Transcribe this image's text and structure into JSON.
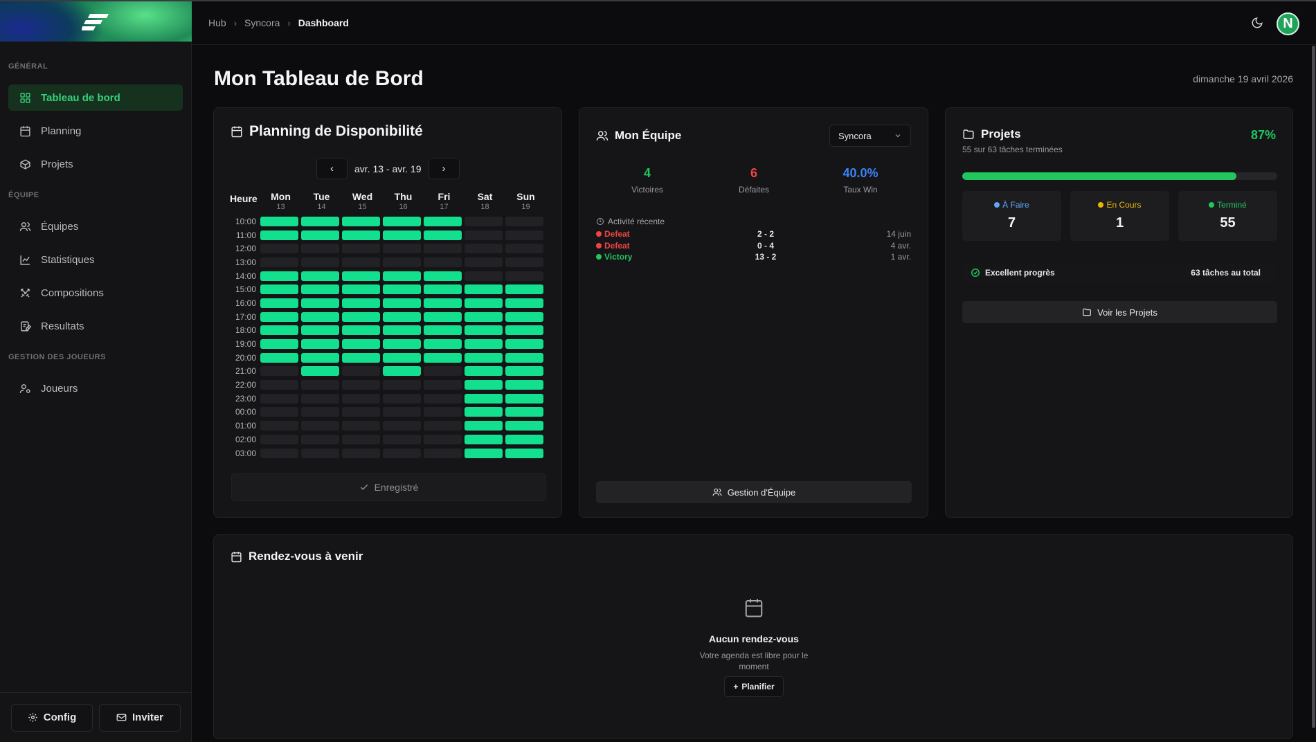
{
  "colors": {
    "accent": "#34d27a",
    "slot_on": "#12e08e",
    "victory": "#22c55e",
    "defeat": "#ef4444",
    "winrate": "#3b82f6",
    "todo": "#60a5fa",
    "in_progress": "#eab308",
    "done": "#22c55e"
  },
  "sidebar": {
    "sections": [
      {
        "title": "GÉNÉRAL",
        "items": [
          {
            "label": "Tableau de bord",
            "icon": "dashboard-icon",
            "active": true
          },
          {
            "label": "Planning",
            "icon": "calendar-icon"
          },
          {
            "label": "Projets",
            "icon": "box-icon"
          }
        ]
      },
      {
        "title": "ÉQUIPE",
        "items": [
          {
            "label": "Équipes",
            "icon": "users-icon"
          },
          {
            "label": "Statistiques",
            "icon": "chart-line-icon"
          },
          {
            "label": "Compositions",
            "icon": "swords-icon"
          },
          {
            "label": "Resultats",
            "icon": "edit-list-icon"
          }
        ]
      },
      {
        "title": "GESTION DES JOUEURS",
        "items": [
          {
            "label": "Joueurs",
            "icon": "user-cog-icon"
          }
        ]
      }
    ],
    "footer": {
      "config_label": "Config",
      "invite_label": "Inviter"
    }
  },
  "header": {
    "breadcrumbs": [
      "Hub",
      "Syncora",
      "Dashboard"
    ],
    "avatar_letter": "N"
  },
  "page": {
    "title": "Mon Tableau de Bord",
    "date": "dimanche 19 avril 2026"
  },
  "planning": {
    "title": "Planning de Disponibilité",
    "week": "avr. 13 - avr. 19",
    "hour_label": "Heure",
    "days": [
      {
        "name": "Mon",
        "num": "13"
      },
      {
        "name": "Tue",
        "num": "14"
      },
      {
        "name": "Wed",
        "num": "15"
      },
      {
        "name": "Thu",
        "num": "16"
      },
      {
        "name": "Fri",
        "num": "17"
      },
      {
        "name": "Sat",
        "num": "18"
      },
      {
        "name": "Sun",
        "num": "19"
      }
    ],
    "rows": [
      {
        "hour": "10:00",
        "slots": [
          1,
          1,
          1,
          1,
          1,
          0,
          0
        ]
      },
      {
        "hour": "11:00",
        "slots": [
          1,
          1,
          1,
          1,
          1,
          0,
          0
        ]
      },
      {
        "hour": "12:00",
        "slots": [
          0,
          0,
          0,
          0,
          0,
          0,
          0
        ]
      },
      {
        "hour": "13:00",
        "slots": [
          0,
          0,
          0,
          0,
          0,
          0,
          0
        ]
      },
      {
        "hour": "14:00",
        "slots": [
          1,
          1,
          1,
          1,
          1,
          0,
          0
        ]
      },
      {
        "hour": "15:00",
        "slots": [
          1,
          1,
          1,
          1,
          1,
          1,
          1
        ]
      },
      {
        "hour": "16:00",
        "slots": [
          1,
          1,
          1,
          1,
          1,
          1,
          1
        ]
      },
      {
        "hour": "17:00",
        "slots": [
          1,
          1,
          1,
          1,
          1,
          1,
          1
        ]
      },
      {
        "hour": "18:00",
        "slots": [
          1,
          1,
          1,
          1,
          1,
          1,
          1
        ]
      },
      {
        "hour": "19:00",
        "slots": [
          1,
          1,
          1,
          1,
          1,
          1,
          1
        ]
      },
      {
        "hour": "20:00",
        "slots": [
          1,
          1,
          1,
          1,
          1,
          1,
          1
        ]
      },
      {
        "hour": "21:00",
        "slots": [
          0,
          1,
          0,
          1,
          0,
          1,
          1
        ]
      },
      {
        "hour": "22:00",
        "slots": [
          0,
          0,
          0,
          0,
          0,
          1,
          1
        ]
      },
      {
        "hour": "23:00",
        "slots": [
          0,
          0,
          0,
          0,
          0,
          1,
          1
        ]
      },
      {
        "hour": "00:00",
        "slots": [
          0,
          0,
          0,
          0,
          0,
          1,
          1
        ]
      },
      {
        "hour": "01:00",
        "slots": [
          0,
          0,
          0,
          0,
          0,
          1,
          1
        ]
      },
      {
        "hour": "02:00",
        "slots": [
          0,
          0,
          0,
          0,
          0,
          1,
          1
        ]
      },
      {
        "hour": "03:00",
        "slots": [
          0,
          0,
          0,
          0,
          0,
          1,
          1
        ]
      }
    ],
    "saved_label": "Enregistré"
  },
  "team": {
    "title": "Mon Équipe",
    "selected_team": "Syncora",
    "stats": {
      "wins": "4",
      "wins_label": "Victoires",
      "losses": "6",
      "losses_label": "Défaites",
      "winrate": "40.0%",
      "winrate_label": "Taux Win"
    },
    "recent_title": "Activité récente",
    "matches": [
      {
        "result": "Defeat",
        "score": "2 - 2",
        "date": "14 juin",
        "win": false
      },
      {
        "result": "Defeat",
        "score": "0 - 4",
        "date": "4 avr.",
        "win": false
      },
      {
        "result": "Victory",
        "score": "13 - 2",
        "date": "1 avr.",
        "win": true
      }
    ],
    "manage_label": "Gestion d'Équipe"
  },
  "projects": {
    "title": "Projets",
    "subtitle": "55 sur 63 tâches terminées",
    "percent": "87%",
    "progress": 0.87,
    "todo_label": "À Faire",
    "todo": "7",
    "in_progress_label": "En Cours",
    "in_progress": "1",
    "done_label": "Terminé",
    "done": "55",
    "status_label": "Excellent progrès",
    "total_label": "63 tâches au total",
    "view_label": "Voir les Projets"
  },
  "appointments": {
    "title": "Rendez-vous à venir",
    "empty_title": "Aucun rendez-vous",
    "empty_desc": "Votre agenda est libre pour le moment",
    "plan_label": "Planifier"
  }
}
